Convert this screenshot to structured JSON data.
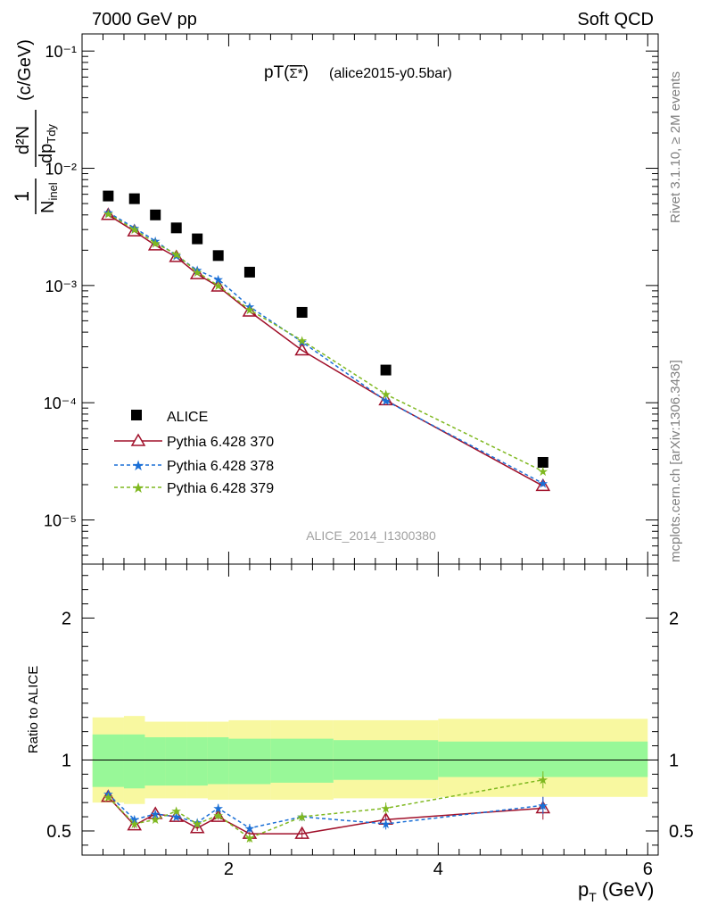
{
  "header": {
    "left": "7000 GeV pp",
    "right": "Soft QCD"
  },
  "side_text": {
    "rivet": "Rivet 3.1.10, ≥ 2M events",
    "mcplots": "mcplots.cern.ch [arXiv:1306.3436]"
  },
  "plot_title": {
    "main": "pT(",
    "particle": "Σ*",
    "close": ")",
    "tag": "(alice2015-y0.5bar)"
  },
  "watermark": "ALICE_2014_I1300380",
  "top_ylabel": {
    "one": "1",
    "nev": "N",
    "nev_sub": "inel",
    "dN": "d²N",
    "dp": "dp",
    "dp_sub": "Tdy",
    "unit": "(c/GeV)"
  },
  "bottom_ylabel": "Ratio to ALICE",
  "xlabel": {
    "main": "p",
    "sub": "T",
    "unit": "(GeV)"
  },
  "colors": {
    "data": "#000000",
    "p370": "#a0102a",
    "p378": "#1a6fd6",
    "p379": "#7fb820",
    "band_inner": "#98f898",
    "band_outer": "#f8f8a0"
  },
  "chart_data": [
    {
      "type": "scatter",
      "name": "main",
      "yscale": "log",
      "xlim": [
        0.6,
        6.1
      ],
      "ylim": [
        4.2e-06,
        0.14
      ],
      "ytick_labels": [
        "10⁻⁵",
        "10⁻⁴",
        "10⁻³",
        "10⁻²",
        "10⁻¹"
      ],
      "x": [
        0.85,
        1.1,
        1.3,
        1.5,
        1.7,
        1.9,
        2.2,
        2.7,
        3.5,
        5.0
      ],
      "series": [
        {
          "name": "ALICE",
          "style": "square",
          "values": [
            0.0058,
            0.0055,
            0.004,
            0.0031,
            0.0025,
            0.0018,
            0.0013,
            0.00059,
            0.00019,
            3.1e-05
          ]
        },
        {
          "name": "Pythia 6.428 370",
          "style": "triangle-solid",
          "values": [
            0.004,
            0.0029,
            0.0022,
            0.00175,
            0.00125,
            0.00098,
            0.0006,
            0.00028,
            0.000105,
            1.95e-05
          ]
        },
        {
          "name": "Pythia 6.428 378",
          "style": "star-dashed",
          "values": [
            0.0042,
            0.0031,
            0.0024,
            0.0018,
            0.00135,
            0.00113,
            0.00066,
            0.00033,
            0.000104,
            2.05e-05
          ]
        },
        {
          "name": "Pythia 6.428 379",
          "style": "star-dashed",
          "values": [
            0.0041,
            0.003,
            0.0023,
            0.00185,
            0.0013,
            0.001,
            0.00062,
            0.00034,
            0.000118,
            2.6e-05
          ]
        }
      ]
    },
    {
      "type": "line",
      "name": "ratio",
      "ylim": [
        0.33,
        2.38
      ],
      "yticks": [
        0.5,
        1,
        2
      ],
      "ytick_labels": [
        "0.5",
        "1",
        "2"
      ],
      "xticks": [
        2,
        4,
        6
      ],
      "xtick_labels": [
        "2",
        "4",
        "6"
      ],
      "x": [
        0.85,
        1.1,
        1.3,
        1.5,
        1.7,
        1.9,
        2.2,
        2.7,
        3.5,
        5.0
      ],
      "bands": {
        "edges": [
          0.7,
          1.0,
          1.2,
          1.4,
          1.6,
          1.8,
          2.0,
          2.4,
          3.0,
          4.0,
          6.0
        ],
        "inner_lo": [
          0.81,
          0.8,
          0.82,
          0.82,
          0.82,
          0.83,
          0.83,
          0.84,
          0.86,
          0.88
        ],
        "inner_hi": [
          1.18,
          1.18,
          1.16,
          1.16,
          1.16,
          1.16,
          1.15,
          1.15,
          1.14,
          1.13
        ],
        "outer_lo": [
          0.7,
          0.69,
          0.73,
          0.73,
          0.73,
          0.72,
          0.72,
          0.72,
          0.73,
          0.74
        ],
        "outer_hi": [
          1.3,
          1.31,
          1.27,
          1.27,
          1.27,
          1.27,
          1.28,
          1.28,
          1.28,
          1.29
        ]
      },
      "series": [
        {
          "name": "Pythia 6.428 370",
          "values": [
            0.74,
            0.54,
            0.62,
            0.6,
            0.52,
            0.6,
            0.48,
            0.48,
            0.58,
            0.66
          ],
          "errors": [
            0.02,
            0.02,
            0.02,
            0.02,
            0.02,
            0.02,
            0.02,
            0.03,
            0.04,
            0.08
          ]
        },
        {
          "name": "Pythia 6.428 378",
          "values": [
            0.76,
            0.58,
            0.62,
            0.6,
            0.56,
            0.66,
            0.52,
            0.6,
            0.55,
            0.68
          ],
          "errors": [
            0.02,
            0.02,
            0.02,
            0.02,
            0.02,
            0.03,
            0.03,
            0.03,
            0.04,
            0.06
          ]
        },
        {
          "name": "Pythia 6.428 379",
          "values": [
            0.74,
            0.55,
            0.58,
            0.64,
            0.55,
            0.61,
            0.45,
            0.6,
            0.66,
            0.86
          ],
          "errors": [
            0.02,
            0.02,
            0.02,
            0.02,
            0.02,
            0.02,
            0.03,
            0.03,
            0.04,
            0.06
          ]
        }
      ]
    }
  ]
}
